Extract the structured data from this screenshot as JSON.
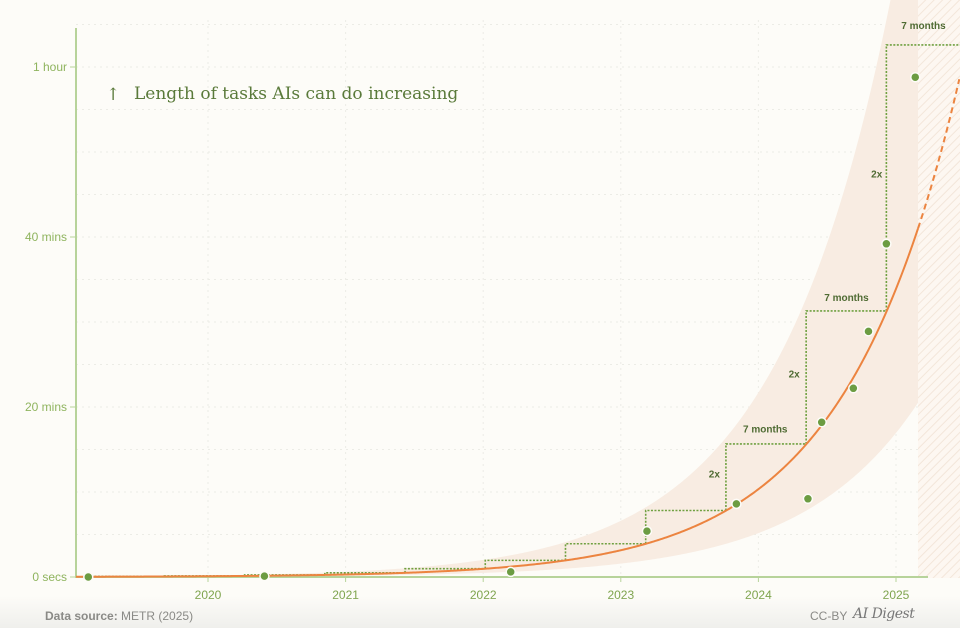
{
  "chart_data": {
    "type": "scatter",
    "title": "Length of tasks AIs can do increasing",
    "title_icon": "arrow-up-icon",
    "x_ticks": [
      "2020",
      "2021",
      "2022",
      "2023",
      "2024",
      "2025"
    ],
    "y_ticks": [
      {
        "value_min": 0,
        "label": "0 secs"
      },
      {
        "value_min": 20,
        "label": "20 mins"
      },
      {
        "value_min": 40,
        "label": "40 mins"
      },
      {
        "value_min": 60,
        "label": "1 hour"
      }
    ],
    "xlim": [
      2019.04,
      2025.46
    ],
    "ylim_min": [
      0,
      68
    ],
    "grid": true,
    "points": [
      {
        "x": 2019.13,
        "y_min": 0.0
      },
      {
        "x": 2020.41,
        "y_min": 0.1
      },
      {
        "x": 2022.2,
        "y_min": 0.6
      },
      {
        "x": 2023.19,
        "y_min": 5.4
      },
      {
        "x": 2023.84,
        "y_min": 8.6
      },
      {
        "x": 2024.36,
        "y_min": 9.2
      },
      {
        "x": 2024.46,
        "y_min": 18.2
      },
      {
        "x": 2024.69,
        "y_min": 22.2
      },
      {
        "x": 2024.8,
        "y_min": 28.9
      },
      {
        "x": 2024.93,
        "y_min": 39.2
      },
      {
        "x": 2025.14,
        "y_min": 58.8
      }
    ],
    "trend": {
      "type": "exponential",
      "doubling_months": 7,
      "ref_x": 2025.16,
      "ref_y_min": 41,
      "solid_until": 2025.16,
      "band_factor": [
        0.5,
        2.1
      ]
    },
    "steps": {
      "last_start": 2024.93,
      "last_level_min": 62.6,
      "count": 12,
      "period_years": 0.583
    },
    "annotations": [
      {
        "text": "7 months",
        "x": 2025.2,
        "y_min": 64.5
      },
      {
        "text": "2x",
        "x": 2024.86,
        "y_min": 47
      },
      {
        "text": "7 months",
        "x": 2024.64,
        "y_min": 32.5
      },
      {
        "text": "2x",
        "x": 2024.26,
        "y_min": 23.5
      },
      {
        "text": "7 months",
        "x": 2024.05,
        "y_min": 17
      },
      {
        "text": "2x",
        "x": 2023.68,
        "y_min": 11.7
      }
    ],
    "colors": {
      "points": "#6c9c42",
      "trend": "#ec8440",
      "band": "#f8ece2",
      "steps": "#6fa040",
      "axis": "#b7d39a"
    }
  },
  "footer": {
    "source_label": "Data source:",
    "source_value": "METR (2025)",
    "license": "CC-BY",
    "brand": "AI Digest"
  }
}
